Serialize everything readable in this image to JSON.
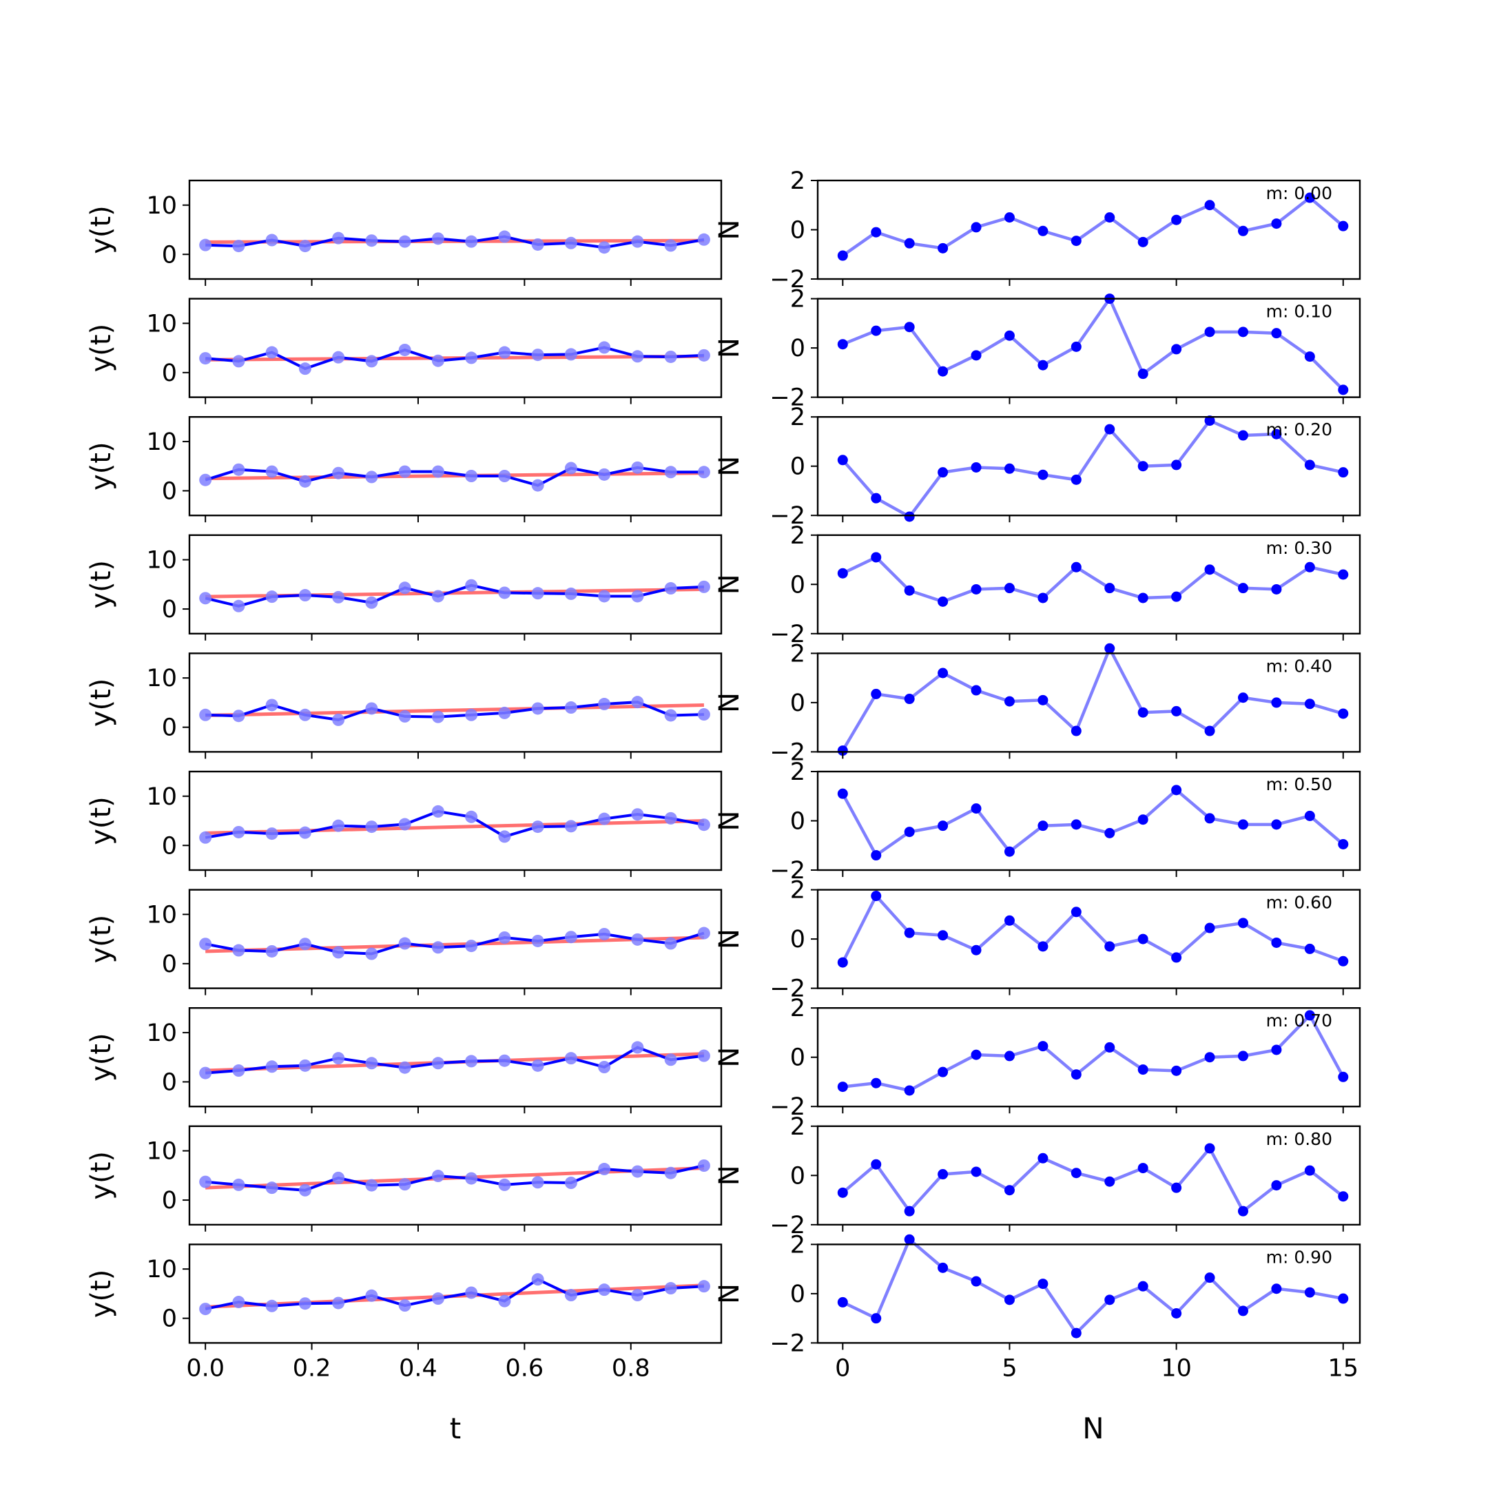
{
  "figure": {
    "left_xlabel": "t",
    "right_xlabel": "N",
    "left_ylabel": "y(t)",
    "right_ylabel": "N"
  },
  "colors": {
    "data": "#0000ff",
    "data_faded": "#7f7fff",
    "trend": "#ff6f6f",
    "axes": "#000000"
  },
  "chart_data": {
    "type": "line",
    "left": {
      "x": [
        0.0,
        0.0625,
        0.125,
        0.1875,
        0.25,
        0.3125,
        0.375,
        0.4375,
        0.5,
        0.5625,
        0.625,
        0.6875,
        0.75,
        0.8125,
        0.875,
        0.9375
      ],
      "xlim": [
        -0.03,
        0.97
      ],
      "ylim": [
        -5,
        15
      ],
      "xticks": [
        0.0,
        0.2,
        0.4,
        0.6,
        0.8
      ],
      "xticklabels": [
        "0.0",
        "0.2",
        "0.4",
        "0.6",
        "0.8"
      ],
      "yticks": [
        0,
        10
      ],
      "yticklabels": [
        "0",
        "10"
      ],
      "panels": [
        {
          "y": [
            1.9,
            1.7,
            2.9,
            1.7,
            3.3,
            2.8,
            2.6,
            3.2,
            2.6,
            3.6,
            2.0,
            2.3,
            1.4,
            2.6,
            1.8,
            3.0
          ],
          "trend": [
            2.5,
            2.8
          ]
        },
        {
          "y": [
            2.9,
            2.3,
            4.1,
            0.8,
            3.1,
            2.3,
            4.6,
            2.4,
            3.0,
            4.1,
            3.6,
            3.7,
            5.1,
            3.3,
            3.2,
            3.5
          ],
          "trend": [
            2.6,
            3.3
          ]
        },
        {
          "y": [
            2.2,
            4.3,
            3.9,
            1.9,
            3.6,
            2.8,
            3.9,
            3.9,
            3.0,
            3.0,
            1.1,
            4.6,
            3.3,
            4.7,
            3.8,
            3.8
          ],
          "trend": [
            2.5,
            3.6
          ]
        },
        {
          "y": [
            2.2,
            0.6,
            2.5,
            2.8,
            2.4,
            1.3,
            4.3,
            2.6,
            4.8,
            3.3,
            3.2,
            3.1,
            2.6,
            2.6,
            4.2,
            4.5
          ],
          "trend": [
            2.5,
            4.0
          ]
        },
        {
          "y": [
            2.5,
            2.3,
            4.5,
            2.5,
            1.5,
            3.8,
            2.2,
            2.1,
            2.5,
            2.9,
            3.8,
            4.0,
            4.7,
            5.1,
            2.4,
            2.6
          ],
          "trend": [
            2.4,
            4.5
          ]
        },
        {
          "y": [
            1.6,
            2.7,
            2.4,
            2.6,
            4.0,
            3.8,
            4.3,
            6.9,
            5.8,
            1.8,
            3.8,
            3.9,
            5.4,
            6.3,
            5.5,
            4.2
          ],
          "trend": [
            2.5,
            5.0
          ]
        },
        {
          "y": [
            4.0,
            2.7,
            2.5,
            4.0,
            2.3,
            2.0,
            4.1,
            3.3,
            3.6,
            5.3,
            4.6,
            5.4,
            6.0,
            4.9,
            4.1,
            6.2
          ],
          "trend": [
            2.5,
            5.3
          ]
        },
        {
          "y": [
            1.8,
            2.3,
            3.1,
            3.3,
            4.8,
            3.8,
            2.9,
            3.8,
            4.2,
            4.3,
            3.3,
            4.8,
            3.0,
            7.0,
            4.5,
            5.3
          ],
          "trend": [
            2.3,
            5.7
          ]
        },
        {
          "y": [
            3.7,
            3.1,
            2.5,
            2.0,
            4.5,
            3.0,
            3.2,
            4.9,
            4.4,
            3.1,
            3.6,
            3.5,
            6.3,
            5.8,
            5.5,
            7.0
          ],
          "trend": [
            2.5,
            6.5
          ]
        },
        {
          "y": [
            1.9,
            3.3,
            2.5,
            3.0,
            3.1,
            4.6,
            2.6,
            4.0,
            5.2,
            3.5,
            7.9,
            4.7,
            5.8,
            4.7,
            6.1,
            6.5
          ],
          "trend": [
            2.3,
            6.7
          ]
        }
      ]
    },
    "right": {
      "x": [
        0,
        1,
        2,
        3,
        4,
        5,
        6,
        7,
        8,
        9,
        10,
        11,
        12,
        13,
        14,
        15
      ],
      "xlim": [
        -0.75,
        15.5
      ],
      "ylim": [
        -2,
        2
      ],
      "xticks": [
        0,
        5,
        10,
        15
      ],
      "xticklabels": [
        "0",
        "5",
        "10",
        "15"
      ],
      "yticks": [
        -2,
        0,
        2
      ],
      "yticklabels": [
        "−2",
        "0",
        "2"
      ],
      "panels": [
        {
          "label": "m: 0.00",
          "y": [
            -1.05,
            -0.1,
            -0.55,
            -0.75,
            0.1,
            0.5,
            -0.05,
            -0.45,
            0.5,
            -0.5,
            0.4,
            1.0,
            -0.05,
            0.25,
            1.3,
            0.15
          ]
        },
        {
          "label": "m: 0.10",
          "y": [
            0.15,
            0.7,
            0.85,
            -0.95,
            -0.3,
            0.5,
            -0.7,
            0.05,
            2.0,
            -1.05,
            -0.05,
            0.65,
            0.65,
            0.6,
            -0.35,
            -1.7
          ]
        },
        {
          "label": "m: 0.20",
          "y": [
            0.25,
            -1.3,
            -2.05,
            -0.25,
            -0.05,
            -0.1,
            -0.35,
            -0.55,
            1.5,
            0.0,
            0.05,
            1.85,
            1.25,
            1.3,
            0.05,
            -0.25
          ]
        },
        {
          "label": "m: 0.30",
          "y": [
            0.45,
            1.1,
            -0.25,
            -0.7,
            -0.2,
            -0.15,
            -0.55,
            0.7,
            -0.15,
            -0.55,
            -0.5,
            0.6,
            -0.15,
            -0.2,
            0.7,
            0.4
          ]
        },
        {
          "label": "m: 0.40",
          "y": [
            -1.95,
            0.35,
            0.15,
            1.2,
            0.5,
            0.05,
            0.1,
            -1.15,
            2.2,
            -0.4,
            -0.35,
            -1.15,
            0.2,
            0.0,
            -0.05,
            -0.45
          ]
        },
        {
          "label": "m: 0.50",
          "y": [
            1.1,
            -1.4,
            -0.45,
            -0.2,
            0.5,
            -1.25,
            -0.2,
            -0.15,
            -0.5,
            0.05,
            1.25,
            0.1,
            -0.15,
            -0.15,
            0.2,
            -0.95
          ]
        },
        {
          "label": "m: 0.60",
          "y": [
            -0.95,
            1.75,
            0.25,
            0.15,
            -0.45,
            0.75,
            -0.3,
            1.1,
            -0.3,
            0.0,
            -0.75,
            0.45,
            0.65,
            -0.15,
            -0.4,
            -0.9
          ]
        },
        {
          "label": "m: 0.70",
          "y": [
            -1.2,
            -1.05,
            -1.35,
            -0.6,
            0.1,
            0.05,
            0.45,
            -0.7,
            0.4,
            -0.5,
            -0.55,
            0.0,
            0.05,
            0.3,
            1.7,
            -0.8
          ]
        },
        {
          "label": "m: 0.80",
          "y": [
            -0.7,
            0.45,
            -1.45,
            0.05,
            0.15,
            -0.6,
            0.7,
            0.1,
            -0.25,
            0.3,
            -0.5,
            1.1,
            -1.45,
            -0.4,
            0.2,
            -0.85
          ]
        },
        {
          "label": "m: 0.90",
          "y": [
            -0.35,
            -1.0,
            2.2,
            1.05,
            0.5,
            -0.25,
            0.4,
            -1.6,
            -0.25,
            0.3,
            -0.8,
            0.65,
            -0.7,
            0.2,
            0.05,
            -0.2
          ]
        }
      ]
    }
  }
}
